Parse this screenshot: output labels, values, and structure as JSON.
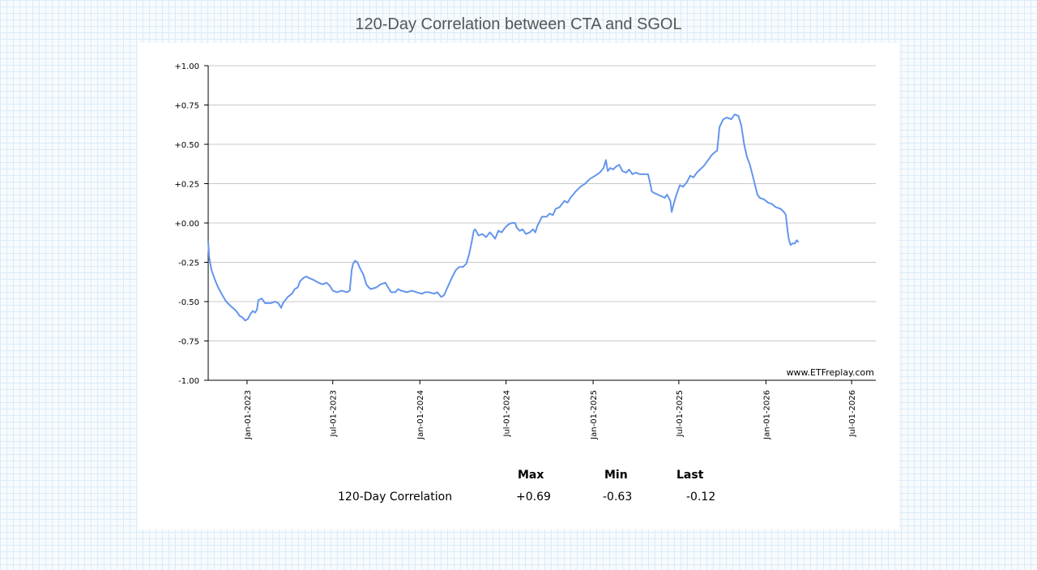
{
  "page": {
    "title": "120-Day Correlation between CTA and SGOL"
  },
  "chart_data": {
    "type": "line",
    "title": "120-Day Correlation between CTA and SGOL",
    "xlabel": "",
    "ylabel": "",
    "ylim": [
      -1.0,
      1.0
    ],
    "xlim": [
      "2022-10-11",
      "2026-08-21"
    ],
    "yticks": [
      "+1.00",
      "+0.75",
      "+0.50",
      "+0.25",
      "+0.00",
      "-0.25",
      "-0.50",
      "-0.75",
      "-1.00"
    ],
    "xticks": [
      {
        "date": "2023-01-01",
        "label": "Jan-01-2023"
      },
      {
        "date": "2023-07-01",
        "label": "Jul-01-2023"
      },
      {
        "date": "2024-01-01",
        "label": "Jan-01-2024"
      },
      {
        "date": "2024-07-01",
        "label": "Jul-01-2024"
      },
      {
        "date": "2025-01-01",
        "label": "Jan-01-2025"
      },
      {
        "date": "2025-07-01",
        "label": "Jul-01-2025"
      },
      {
        "date": "2026-01-01",
        "label": "Jan-01-2026"
      },
      {
        "date": "2026-07-01",
        "label": "Jul-01-2026"
      }
    ],
    "grid": true,
    "line_color": "#6495ed",
    "watermark": "www.ETFreplay.com",
    "series": [
      {
        "name": "120-Day Correlation",
        "points": [
          [
            "2022-10-11",
            -0.12
          ],
          [
            "2022-10-13",
            -0.22
          ],
          [
            "2022-10-18",
            -0.3
          ],
          [
            "2022-10-25",
            -0.36
          ],
          [
            "2022-11-01",
            -0.41
          ],
          [
            "2022-11-10",
            -0.46
          ],
          [
            "2022-11-18",
            -0.5
          ],
          [
            "2022-11-28",
            -0.53
          ],
          [
            "2022-12-06",
            -0.55
          ],
          [
            "2022-12-12",
            -0.57
          ],
          [
            "2022-12-16",
            -0.59
          ],
          [
            "2022-12-22",
            -0.6
          ],
          [
            "2022-12-28",
            -0.62
          ],
          [
            "2023-01-03",
            -0.61
          ],
          [
            "2023-01-08",
            -0.58
          ],
          [
            "2023-01-13",
            -0.56
          ],
          [
            "2023-01-18",
            -0.57
          ],
          [
            "2023-01-22",
            -0.55
          ],
          [
            "2023-01-25",
            -0.49
          ],
          [
            "2023-02-01",
            -0.48
          ],
          [
            "2023-02-08",
            -0.51
          ],
          [
            "2023-02-20",
            -0.51
          ],
          [
            "2023-03-01",
            -0.5
          ],
          [
            "2023-03-08",
            -0.51
          ],
          [
            "2023-03-14",
            -0.54
          ],
          [
            "2023-03-18",
            -0.51
          ],
          [
            "2023-03-28",
            -0.47
          ],
          [
            "2023-04-06",
            -0.45
          ],
          [
            "2023-04-12",
            -0.42
          ],
          [
            "2023-04-18",
            -0.41
          ],
          [
            "2023-04-23",
            -0.37
          ],
          [
            "2023-04-30",
            -0.35
          ],
          [
            "2023-05-06",
            -0.34
          ],
          [
            "2023-05-12",
            -0.35
          ],
          [
            "2023-05-20",
            -0.36
          ],
          [
            "2023-06-01",
            -0.38
          ],
          [
            "2023-06-10",
            -0.39
          ],
          [
            "2023-06-18",
            -0.38
          ],
          [
            "2023-06-25",
            -0.4
          ],
          [
            "2023-07-01",
            -0.43
          ],
          [
            "2023-07-10",
            -0.44
          ],
          [
            "2023-07-20",
            -0.43
          ],
          [
            "2023-07-31",
            -0.44
          ],
          [
            "2023-08-06",
            -0.43
          ],
          [
            "2023-08-10",
            -0.3
          ],
          [
            "2023-08-13",
            -0.26
          ],
          [
            "2023-08-17",
            -0.24
          ],
          [
            "2023-08-22",
            -0.25
          ],
          [
            "2023-08-28",
            -0.29
          ],
          [
            "2023-09-04",
            -0.33
          ],
          [
            "2023-09-10",
            -0.39
          ],
          [
            "2023-09-15",
            -0.41
          ],
          [
            "2023-09-20",
            -0.42
          ],
          [
            "2023-10-01",
            -0.41
          ],
          [
            "2023-10-10",
            -0.39
          ],
          [
            "2023-10-20",
            -0.38
          ],
          [
            "2023-10-26",
            -0.41
          ],
          [
            "2023-11-01",
            -0.44
          ],
          [
            "2023-11-10",
            -0.44
          ],
          [
            "2023-11-16",
            -0.42
          ],
          [
            "2023-11-22",
            -0.43
          ],
          [
            "2023-12-05",
            -0.44
          ],
          [
            "2023-12-15",
            -0.43
          ],
          [
            "2023-12-25",
            -0.44
          ],
          [
            "2024-01-05",
            -0.45
          ],
          [
            "2024-01-12",
            -0.44
          ],
          [
            "2024-01-20",
            -0.44
          ],
          [
            "2024-02-01",
            -0.45
          ],
          [
            "2024-02-07",
            -0.44
          ],
          [
            "2024-02-15",
            -0.47
          ],
          [
            "2024-02-21",
            -0.46
          ],
          [
            "2024-02-27",
            -0.42
          ],
          [
            "2024-03-04",
            -0.38
          ],
          [
            "2024-03-10",
            -0.34
          ],
          [
            "2024-03-17",
            -0.3
          ],
          [
            "2024-03-24",
            -0.28
          ],
          [
            "2024-04-01",
            -0.28
          ],
          [
            "2024-04-08",
            -0.26
          ],
          [
            "2024-04-14",
            -0.2
          ],
          [
            "2024-04-19",
            -0.13
          ],
          [
            "2024-04-24",
            -0.05
          ],
          [
            "2024-04-27",
            -0.04
          ],
          [
            "2024-05-04",
            -0.08
          ],
          [
            "2024-05-12",
            -0.07
          ],
          [
            "2024-05-20",
            -0.09
          ],
          [
            "2024-05-28",
            -0.06
          ],
          [
            "2024-06-03",
            -0.08
          ],
          [
            "2024-06-08",
            -0.1
          ],
          [
            "2024-06-15",
            -0.05
          ],
          [
            "2024-06-22",
            -0.06
          ],
          [
            "2024-06-29",
            -0.03
          ],
          [
            "2024-07-06",
            -0.01
          ],
          [
            "2024-07-13",
            0.0
          ],
          [
            "2024-07-20",
            0.0
          ],
          [
            "2024-07-24",
            -0.03
          ],
          [
            "2024-07-30",
            -0.05
          ],
          [
            "2024-08-05",
            -0.04
          ],
          [
            "2024-08-12",
            -0.07
          ],
          [
            "2024-08-20",
            -0.06
          ],
          [
            "2024-08-27",
            -0.04
          ],
          [
            "2024-09-01",
            -0.06
          ],
          [
            "2024-09-05",
            -0.02
          ],
          [
            "2024-09-10",
            0.01
          ],
          [
            "2024-09-15",
            0.04
          ],
          [
            "2024-09-25",
            0.04
          ],
          [
            "2024-10-01",
            0.06
          ],
          [
            "2024-10-08",
            0.05
          ],
          [
            "2024-10-14",
            0.09
          ],
          [
            "2024-10-22",
            0.1
          ],
          [
            "2024-11-01",
            0.14
          ],
          [
            "2024-11-08",
            0.13
          ],
          [
            "2024-11-14",
            0.16
          ],
          [
            "2024-11-25",
            0.2
          ],
          [
            "2024-12-05",
            0.23
          ],
          [
            "2024-12-15",
            0.25
          ],
          [
            "2024-12-25",
            0.28
          ],
          [
            "2025-01-05",
            0.3
          ],
          [
            "2025-01-15",
            0.32
          ],
          [
            "2025-01-23",
            0.35
          ],
          [
            "2025-01-28",
            0.4
          ],
          [
            "2025-02-01",
            0.33
          ],
          [
            "2025-02-06",
            0.35
          ],
          [
            "2025-02-12",
            0.34
          ],
          [
            "2025-02-19",
            0.36
          ],
          [
            "2025-02-25",
            0.37
          ],
          [
            "2025-03-04",
            0.33
          ],
          [
            "2025-03-12",
            0.32
          ],
          [
            "2025-03-18",
            0.34
          ],
          [
            "2025-03-25",
            0.31
          ],
          [
            "2025-04-01",
            0.32
          ],
          [
            "2025-04-10",
            0.31
          ],
          [
            "2025-04-20",
            0.31
          ],
          [
            "2025-04-27",
            0.31
          ],
          [
            "2025-05-01",
            0.26
          ],
          [
            "2025-05-05",
            0.2
          ],
          [
            "2025-05-10",
            0.19
          ],
          [
            "2025-05-18",
            0.18
          ],
          [
            "2025-05-25",
            0.17
          ],
          [
            "2025-06-01",
            0.16
          ],
          [
            "2025-06-06",
            0.18
          ],
          [
            "2025-06-10",
            0.16
          ],
          [
            "2025-06-13",
            0.14
          ],
          [
            "2025-06-16",
            0.07
          ],
          [
            "2025-06-20",
            0.12
          ],
          [
            "2025-06-26",
            0.18
          ],
          [
            "2025-07-03",
            0.24
          ],
          [
            "2025-07-10",
            0.23
          ],
          [
            "2025-07-18",
            0.26
          ],
          [
            "2025-07-25",
            0.3
          ],
          [
            "2025-08-01",
            0.29
          ],
          [
            "2025-08-08",
            0.32
          ],
          [
            "2025-08-15",
            0.34
          ],
          [
            "2025-08-22",
            0.36
          ],
          [
            "2025-09-01",
            0.4
          ],
          [
            "2025-09-08",
            0.43
          ],
          [
            "2025-09-15",
            0.45
          ],
          [
            "2025-09-20",
            0.46
          ],
          [
            "2025-09-25",
            0.61
          ],
          [
            "2025-10-03",
            0.66
          ],
          [
            "2025-10-10",
            0.67
          ],
          [
            "2025-10-20",
            0.66
          ],
          [
            "2025-10-27",
            0.69
          ],
          [
            "2025-11-04",
            0.68
          ],
          [
            "2025-11-10",
            0.62
          ],
          [
            "2025-11-16",
            0.5
          ],
          [
            "2025-11-22",
            0.42
          ],
          [
            "2025-11-28",
            0.37
          ],
          [
            "2025-12-04",
            0.3
          ],
          [
            "2025-12-09",
            0.24
          ],
          [
            "2025-12-14",
            0.18
          ],
          [
            "2025-12-19",
            0.16
          ],
          [
            "2025-12-28",
            0.15
          ],
          [
            "2026-01-05",
            0.13
          ],
          [
            "2026-01-14",
            0.12
          ],
          [
            "2026-01-22",
            0.1
          ],
          [
            "2026-02-01",
            0.09
          ],
          [
            "2026-02-08",
            0.07
          ],
          [
            "2026-02-12",
            0.05
          ],
          [
            "2026-02-15",
            -0.03
          ],
          [
            "2026-02-18",
            -0.1
          ],
          [
            "2026-02-22",
            -0.14
          ],
          [
            "2026-02-26",
            -0.13
          ],
          [
            "2026-03-03",
            -0.13
          ],
          [
            "2026-03-07",
            -0.11
          ],
          [
            "2026-03-10",
            -0.12
          ]
        ]
      }
    ]
  },
  "stats": {
    "headers": [
      "Max",
      "Min",
      "Last"
    ],
    "rows": [
      {
        "label": "120-Day Correlation",
        "values": [
          "+0.69",
          "-0.63",
          "-0.12"
        ]
      }
    ]
  }
}
